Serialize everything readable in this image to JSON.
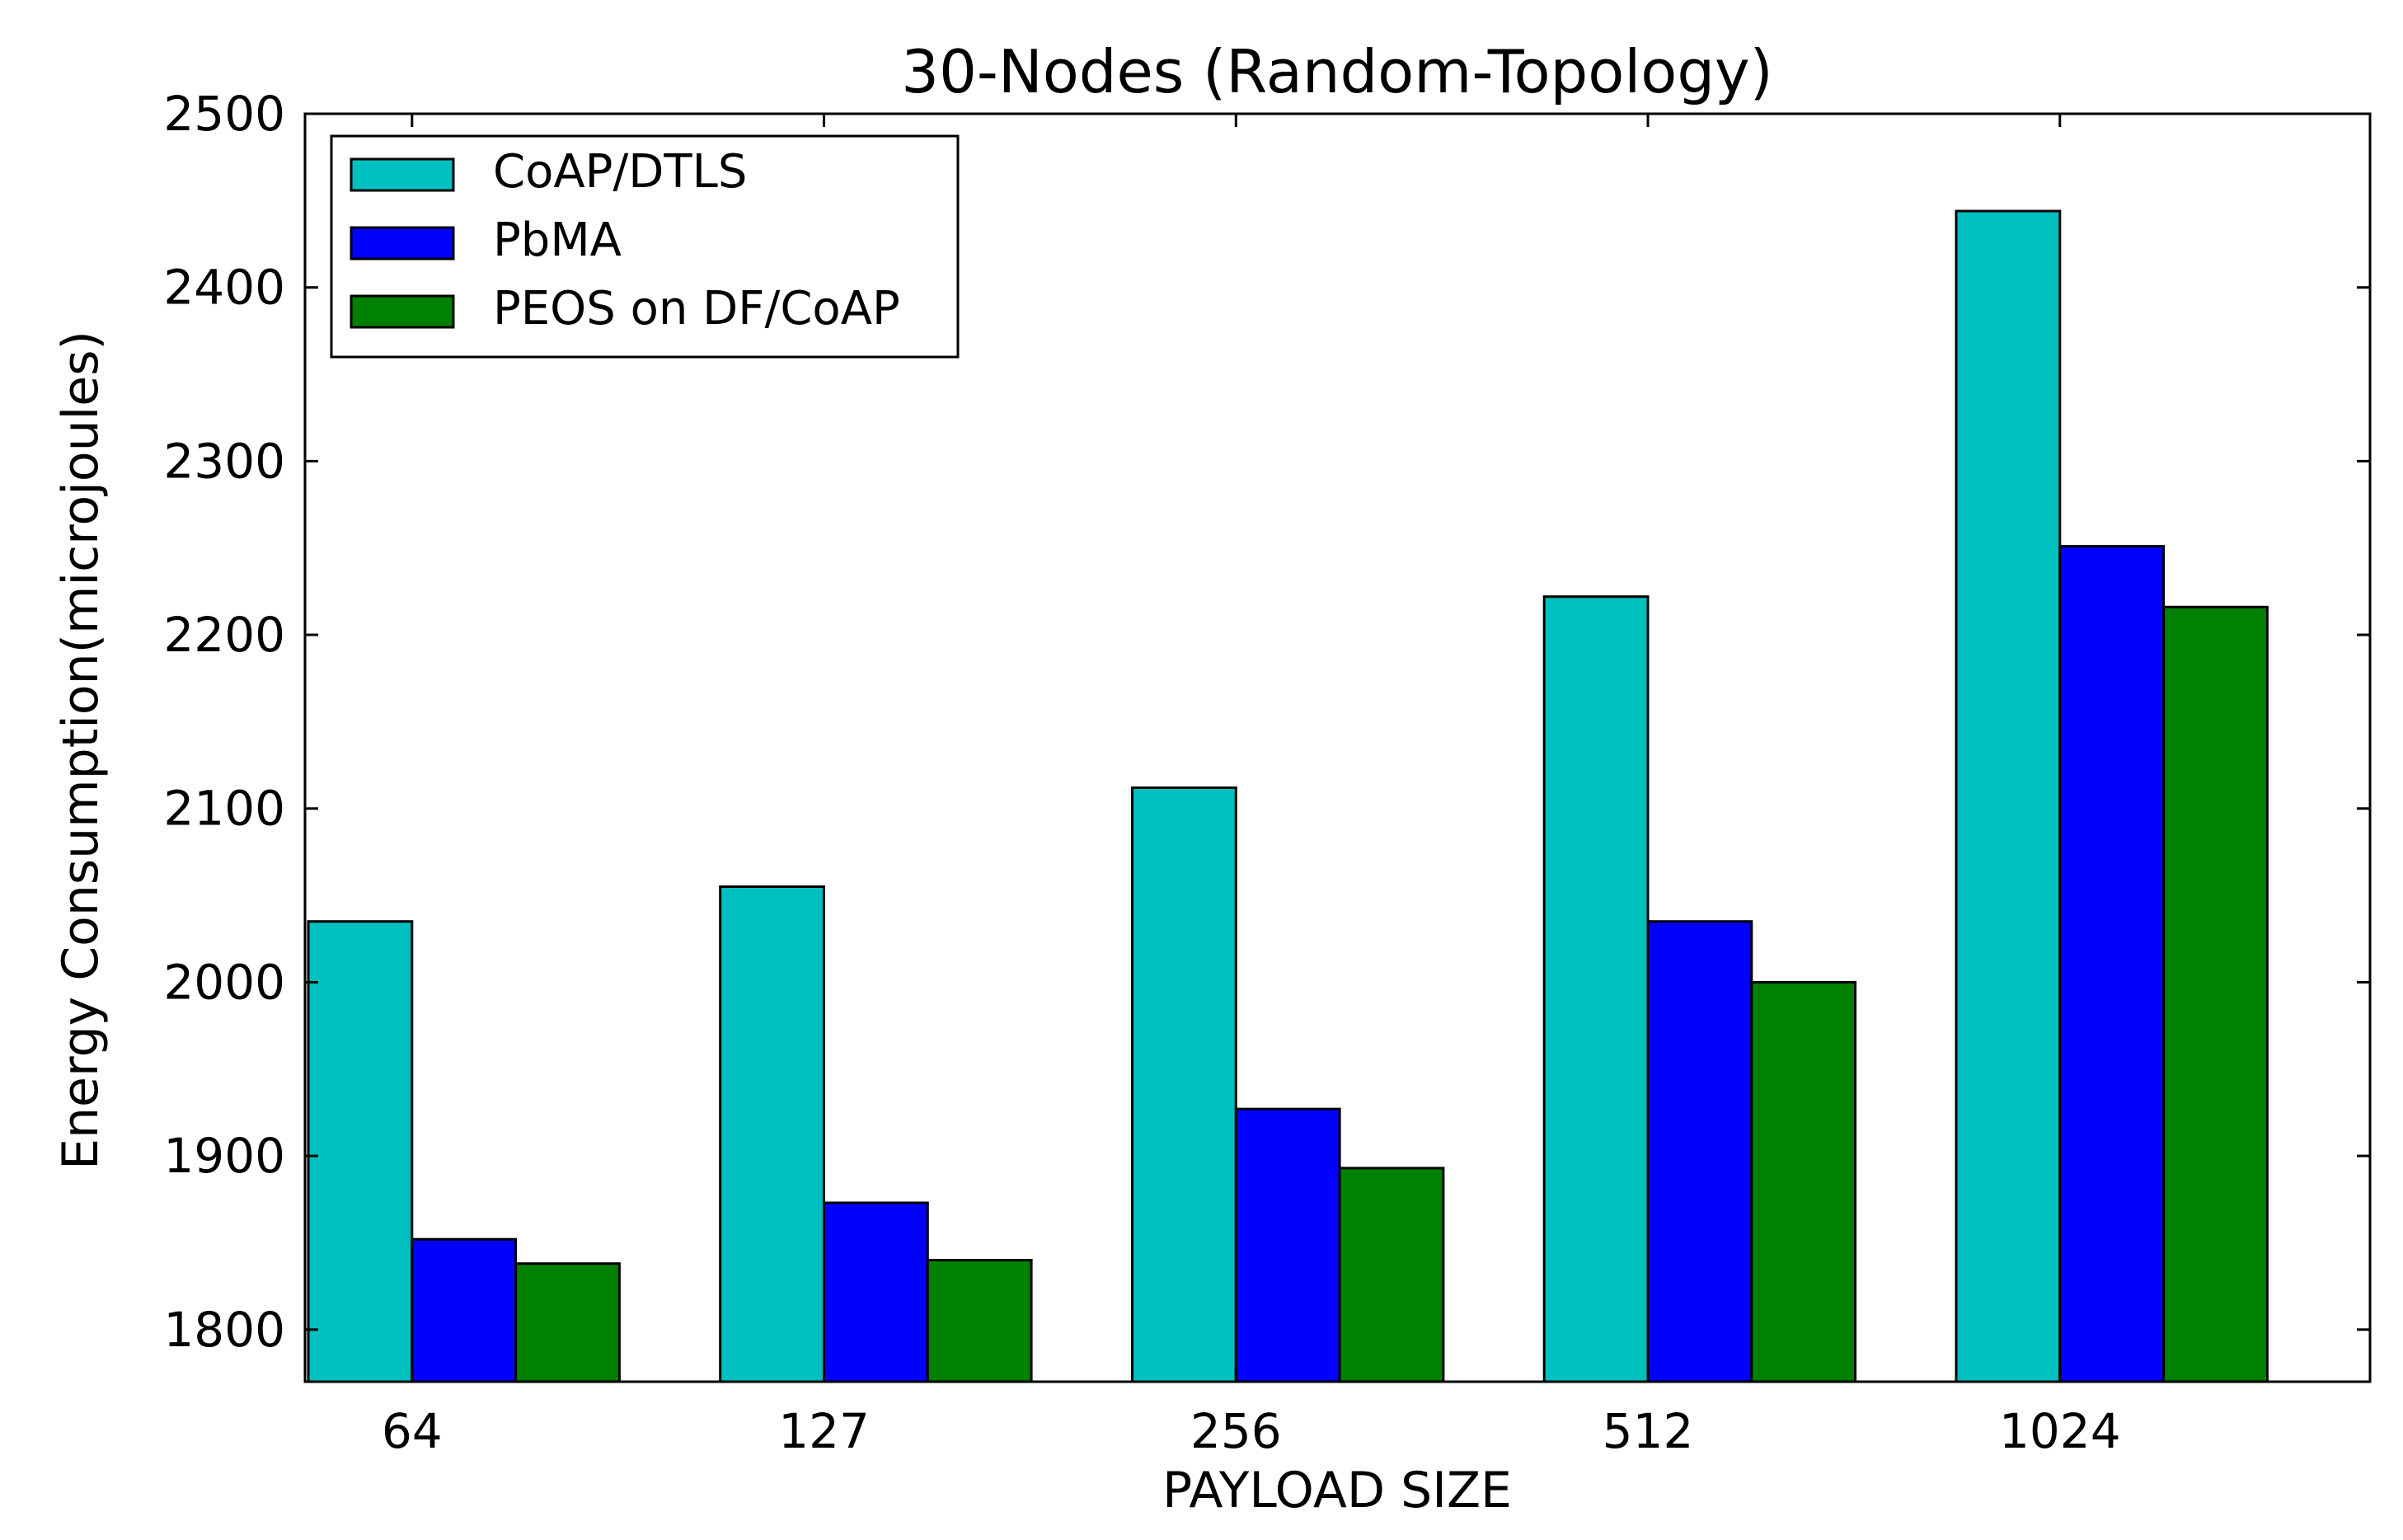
{
  "chart_data": {
    "type": "bar",
    "title": "30-Nodes (Random-Topology)",
    "xlabel": "PAYLOAD SIZE",
    "ylabel": "Energy Consumption(microjoules)",
    "categories": [
      "64",
      "127",
      "256",
      "512",
      "1024"
    ],
    "ylim": [
      1770,
      2500
    ],
    "yticks": [
      1800,
      1900,
      2000,
      2100,
      2200,
      2300,
      2400,
      2500
    ],
    "grid": false,
    "legend_position": "top-left",
    "series": [
      {
        "name": "CoAP/DTLS",
        "color": "#00bfbf",
        "values": [
          2035,
          2055,
          2112,
          2222,
          2444
        ]
      },
      {
        "name": "PbMA",
        "color": "#0000ff",
        "values": [
          1852,
          1873,
          1927,
          2035,
          2251
        ]
      },
      {
        "name": "PEOS on DF/CoAP",
        "color": "#008000",
        "values": [
          1838,
          1840,
          1893,
          2000,
          2216
        ]
      }
    ]
  }
}
